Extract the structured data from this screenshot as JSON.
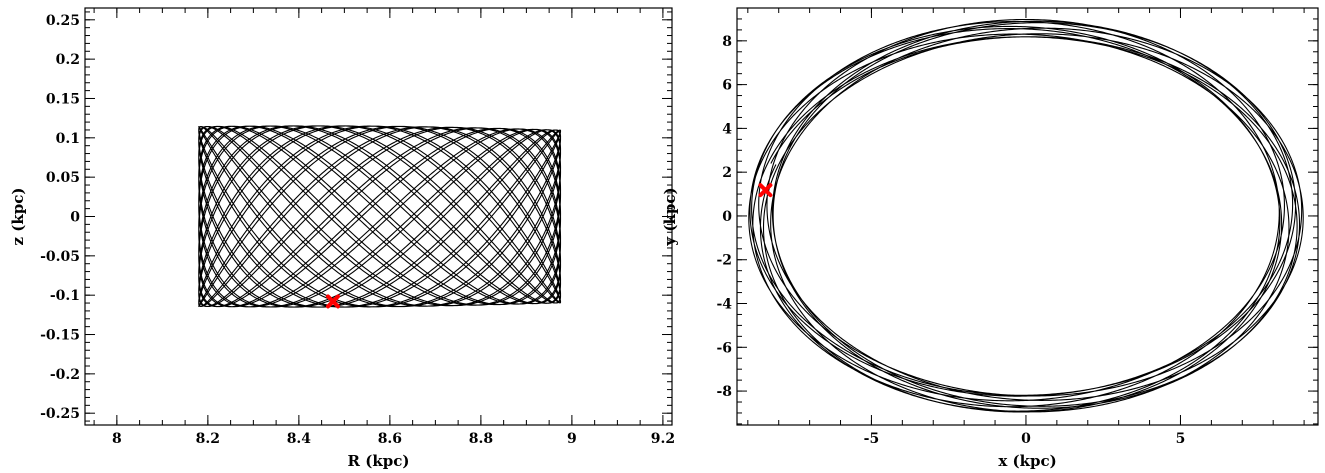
{
  "chart_data": [
    {
      "type": "line",
      "xlabel": "R (kpc)",
      "ylabel": "z (kpc)",
      "xlim": [
        7.93,
        9.22
      ],
      "ylim": [
        -0.265,
        0.265
      ],
      "xticks": [
        8,
        8.2,
        8.4,
        8.6,
        8.8,
        9,
        9.2
      ],
      "xtick_labels": [
        "8",
        "8.2",
        "8.4",
        "8.6",
        "8.8",
        "9",
        "9.2"
      ],
      "yticks": [
        0.25,
        0.2,
        0.15,
        0.1,
        0.05,
        0,
        -0.05,
        -0.1,
        -0.15,
        -0.2,
        -0.25
      ],
      "ytick_labels": [
        "0.25",
        "0.2",
        "0.15",
        "0.1",
        "0.05",
        "0",
        "-0.05",
        "-0.1",
        "-0.15",
        "-0.2",
        "-0.25"
      ],
      "orbit": {
        "r_min": 8.18,
        "r_max": 8.975,
        "z_amplitude": 0.112,
        "radial_cycles": 22,
        "vertical_cycles": 41
      },
      "marker": {
        "x": 8.475,
        "y": -0.108,
        "color": "#ff0000",
        "shape": "x"
      },
      "grid": false,
      "line_color": "#000000"
    },
    {
      "type": "line",
      "xlabel": "x (kpc)",
      "ylabel": "y (kpc)",
      "xlim": [
        -9.35,
        9.45
      ],
      "ylim": [
        -9.55,
        9.5
      ],
      "xticks": [
        -5,
        0,
        5
      ],
      "xtick_labels": [
        "-5",
        "0",
        "5"
      ],
      "yticks": [
        8,
        6,
        4,
        2,
        0,
        -2,
        -4,
        -6,
        -8
      ],
      "ytick_labels": [
        "8",
        "6",
        "4",
        "2",
        "0",
        "-2",
        "-4",
        "-6",
        "-8"
      ],
      "orbit": {
        "r_min": 8.18,
        "r_max": 8.975,
        "loops": 11
      },
      "marker": {
        "x": -8.43,
        "y": 1.18,
        "color": "#ff0000",
        "shape": "x"
      },
      "grid": false,
      "line_color": "#000000"
    }
  ]
}
